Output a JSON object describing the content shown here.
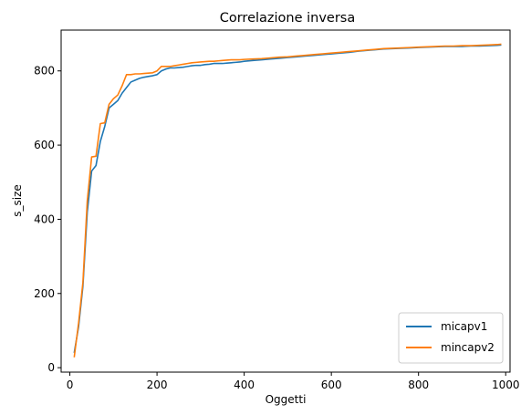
{
  "chart_data": {
    "type": "line",
    "title": "Correlazione inversa",
    "xlabel": "Oggetti",
    "ylabel": "s_size",
    "xlim": [
      -20,
      1010
    ],
    "ylim": [
      -12,
      910
    ],
    "xticks": [
      0,
      200,
      400,
      600,
      800,
      1000
    ],
    "yticks": [
      0,
      200,
      400,
      600,
      800
    ],
    "grid": false,
    "legend_position": "lower right",
    "series": [
      {
        "name": "micapv1",
        "color": "#1f77b4",
        "x": [
          10,
          20,
          30,
          40,
          50,
          60,
          70,
          80,
          90,
          100,
          110,
          120,
          130,
          140,
          150,
          160,
          170,
          180,
          190,
          200,
          210,
          220,
          230,
          240,
          250,
          260,
          270,
          280,
          290,
          300,
          310,
          320,
          330,
          340,
          350,
          360,
          370,
          380,
          390,
          400,
          420,
          440,
          460,
          480,
          500,
          520,
          540,
          560,
          580,
          600,
          620,
          640,
          660,
          680,
          700,
          720,
          740,
          760,
          780,
          800,
          820,
          840,
          860,
          880,
          900,
          920,
          940,
          960,
          980,
          990
        ],
        "y": [
          40,
          110,
          220,
          420,
          530,
          545,
          610,
          650,
          700,
          710,
          720,
          740,
          755,
          770,
          775,
          780,
          783,
          785,
          787,
          790,
          800,
          805,
          808,
          808,
          809,
          810,
          812,
          814,
          815,
          815,
          817,
          818,
          820,
          820,
          820,
          821,
          822,
          823,
          824,
          826,
          828,
          830,
          832,
          834,
          836,
          838,
          840,
          842,
          844,
          846,
          848,
          850,
          853,
          855,
          857,
          859,
          860,
          861,
          862,
          863,
          864,
          865,
          866,
          866,
          866,
          867,
          867,
          868,
          869,
          870
        ]
      },
      {
        "name": "mincapv2",
        "color": "#ff7f0e",
        "x": [
          10,
          20,
          30,
          40,
          50,
          60,
          70,
          80,
          90,
          100,
          110,
          120,
          130,
          140,
          150,
          160,
          170,
          180,
          190,
          200,
          210,
          220,
          230,
          240,
          250,
          260,
          270,
          280,
          290,
          300,
          310,
          320,
          330,
          340,
          350,
          360,
          370,
          380,
          390,
          400,
          420,
          440,
          460,
          480,
          500,
          520,
          540,
          560,
          580,
          600,
          620,
          640,
          660,
          680,
          700,
          720,
          740,
          760,
          780,
          800,
          820,
          840,
          860,
          880,
          900,
          920,
          940,
          960,
          980,
          990
        ],
        "y": [
          28,
          120,
          230,
          450,
          568,
          570,
          658,
          660,
          710,
          725,
          735,
          760,
          790,
          790,
          792,
          792,
          793,
          794,
          795,
          800,
          812,
          812,
          812,
          814,
          816,
          818,
          820,
          822,
          823,
          824,
          825,
          826,
          826,
          827,
          828,
          829,
          830,
          830,
          830,
          831,
          832,
          833,
          835,
          837,
          838,
          840,
          842,
          844,
          846,
          848,
          850,
          852,
          854,
          856,
          858,
          860,
          861,
          862,
          863,
          864,
          865,
          866,
          867,
          867,
          868,
          868,
          869,
          870,
          871,
          872
        ]
      }
    ]
  }
}
